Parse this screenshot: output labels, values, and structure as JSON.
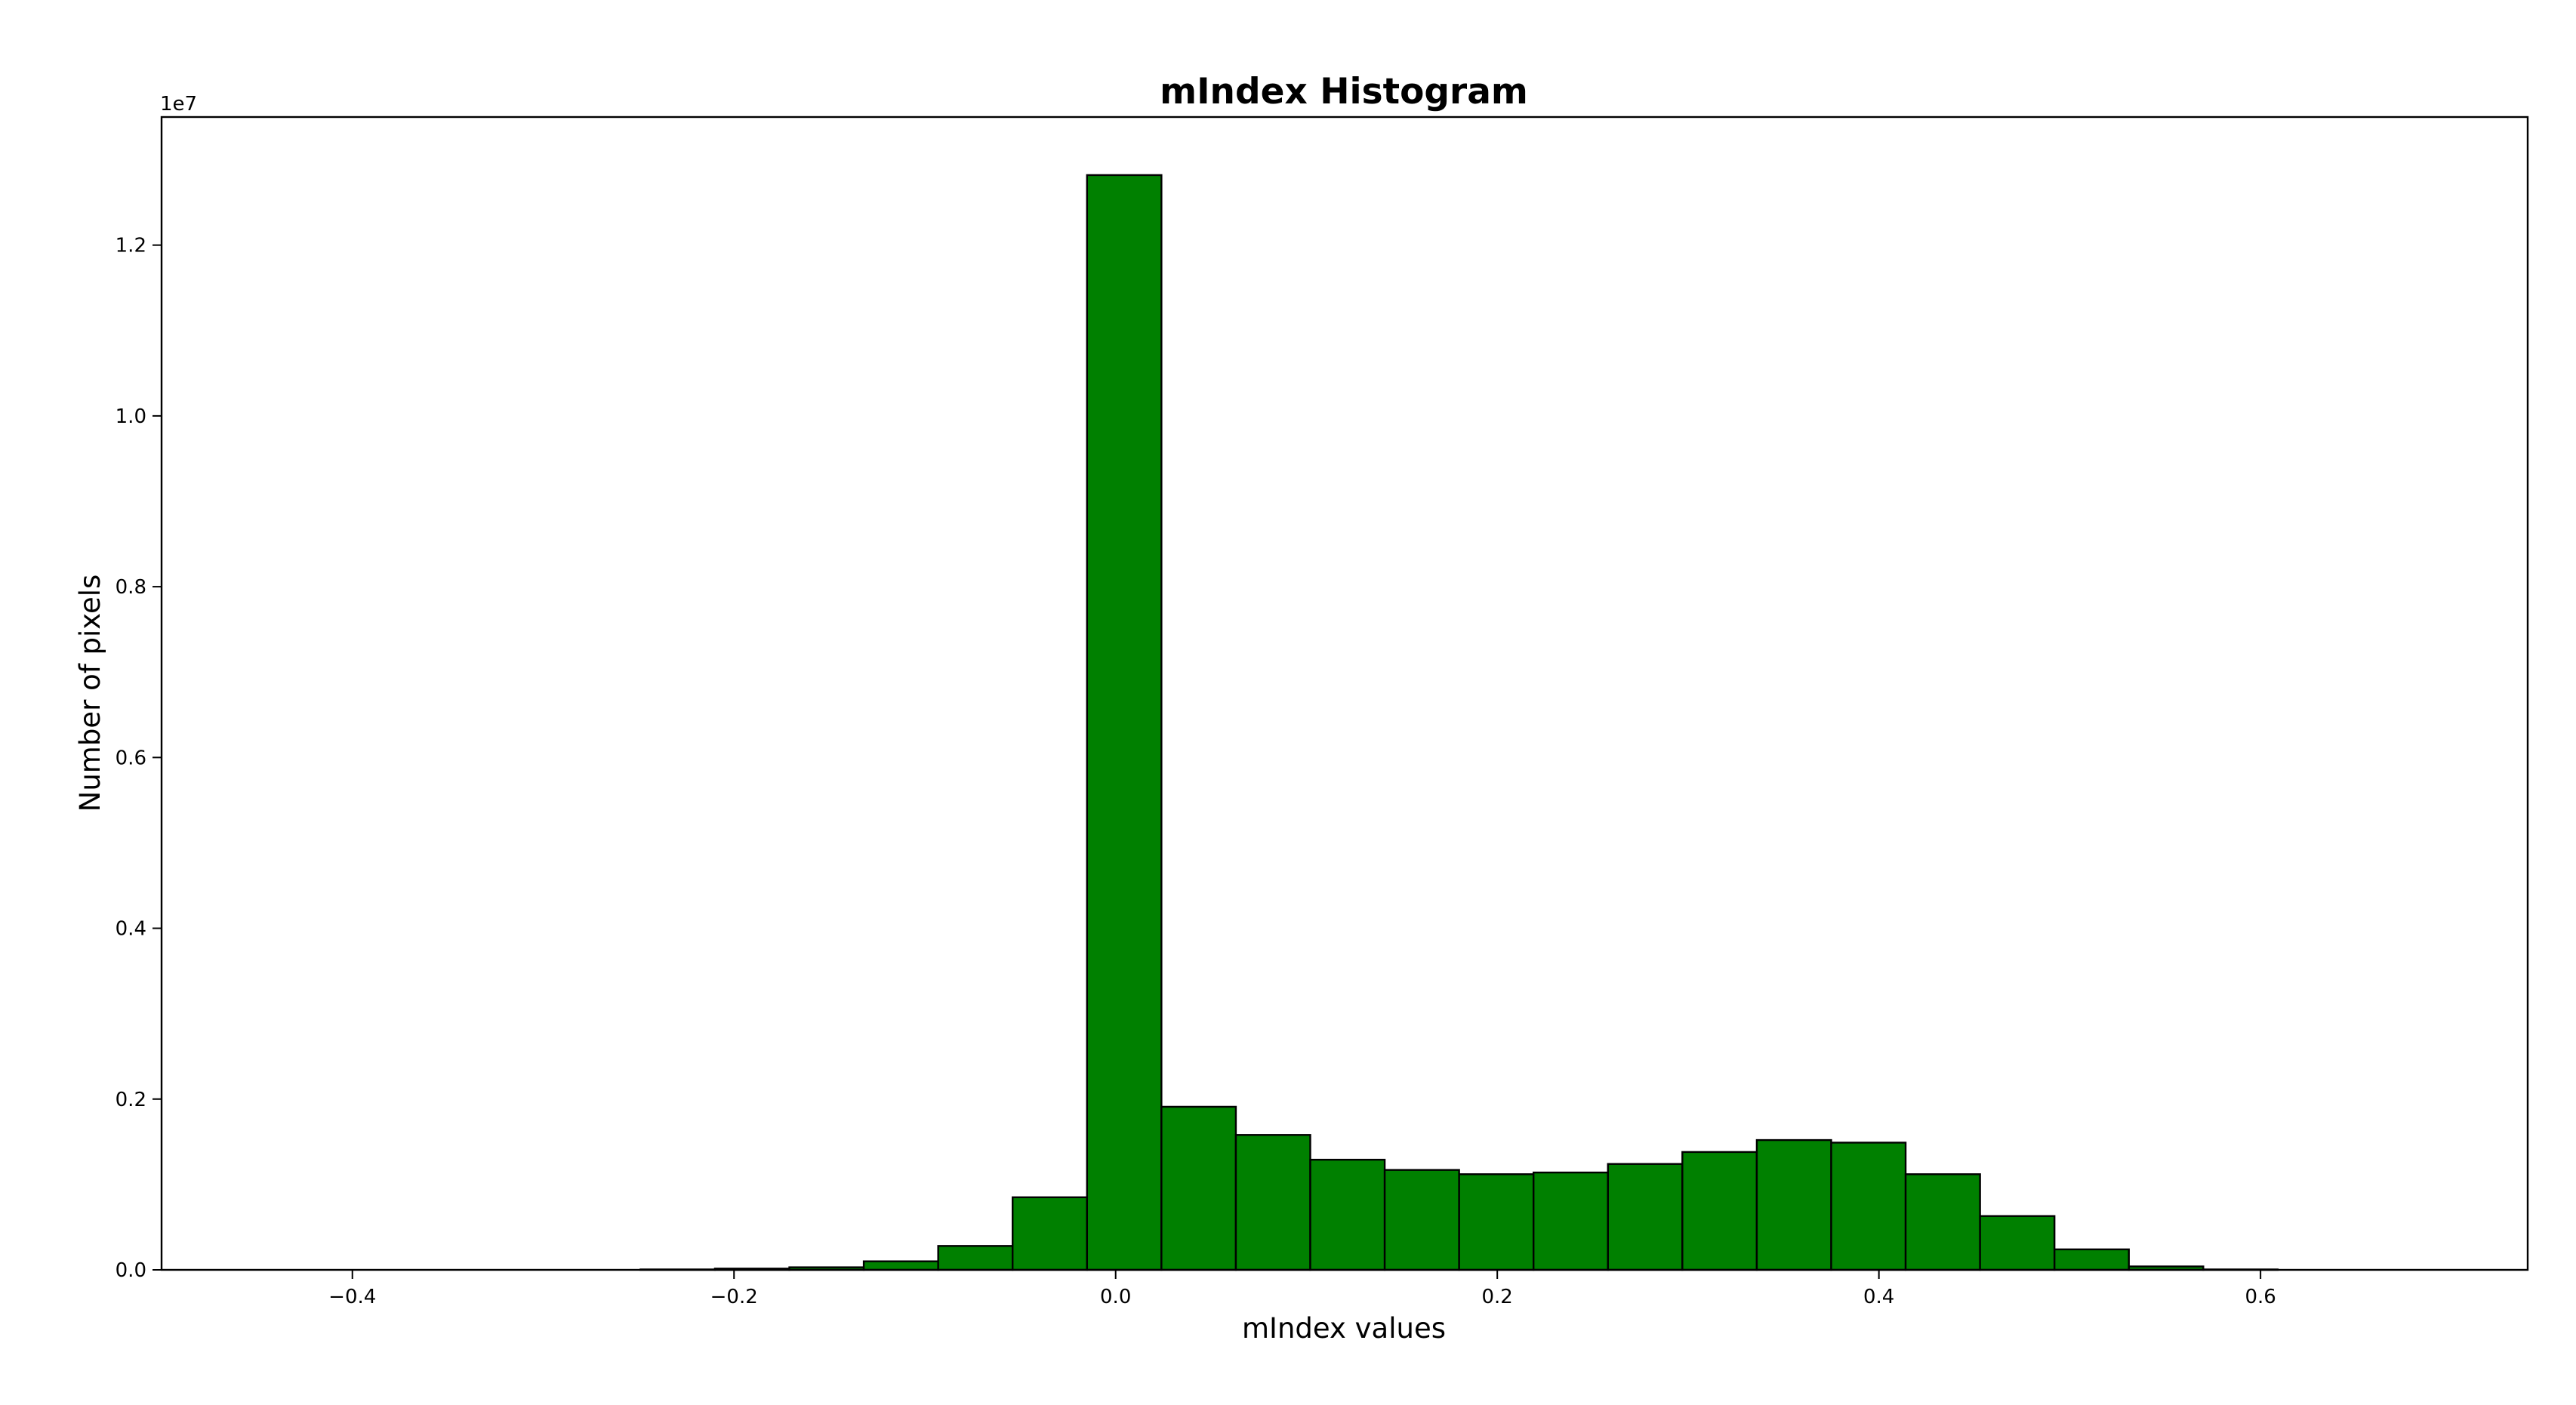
{
  "chart_data": {
    "type": "bar",
    "title": "mIndex Histogram",
    "xlabel": "mIndex values",
    "ylabel": "Number of pixels",
    "y_offset_label": "1e7",
    "xlim": [
      -0.5,
      0.74
    ],
    "ylim": [
      0,
      13500000
    ],
    "grid": false,
    "legend": "none",
    "bar_color": "#008000",
    "edge_color": "#000000",
    "bin_edges": [
      -0.249,
      -0.21,
      -0.171,
      -0.132,
      -0.093,
      -0.054,
      -0.015,
      0.024,
      0.063,
      0.102,
      0.141,
      0.18,
      0.219,
      0.258,
      0.297,
      0.336,
      0.375,
      0.414,
      0.453,
      0.492,
      0.531,
      0.57,
      0.609
    ],
    "values": [
      5000,
      15000,
      30000,
      100000,
      280000,
      850000,
      12820000,
      1910000,
      1580000,
      1290000,
      1170000,
      1120000,
      1140000,
      1240000,
      1380000,
      1520000,
      1490000,
      1120000,
      630000,
      240000,
      40000,
      5000
    ],
    "x_ticks": [
      {
        "value": -0.4,
        "label": "−0.4"
      },
      {
        "value": -0.2,
        "label": "−0.2"
      },
      {
        "value": 0.0,
        "label": "0.0"
      },
      {
        "value": 0.2,
        "label": "0.2"
      },
      {
        "value": 0.4,
        "label": "0.4"
      },
      {
        "value": 0.6,
        "label": "0.6"
      }
    ],
    "y_ticks": [
      {
        "value": 0,
        "label": "0.0"
      },
      {
        "value": 2000000,
        "label": "0.2"
      },
      {
        "value": 4000000,
        "label": "0.4"
      },
      {
        "value": 6000000,
        "label": "0.6"
      },
      {
        "value": 8000000,
        "label": "0.8"
      },
      {
        "value": 10000000,
        "label": "1.0"
      },
      {
        "value": 12000000,
        "label": "1.2"
      }
    ]
  }
}
